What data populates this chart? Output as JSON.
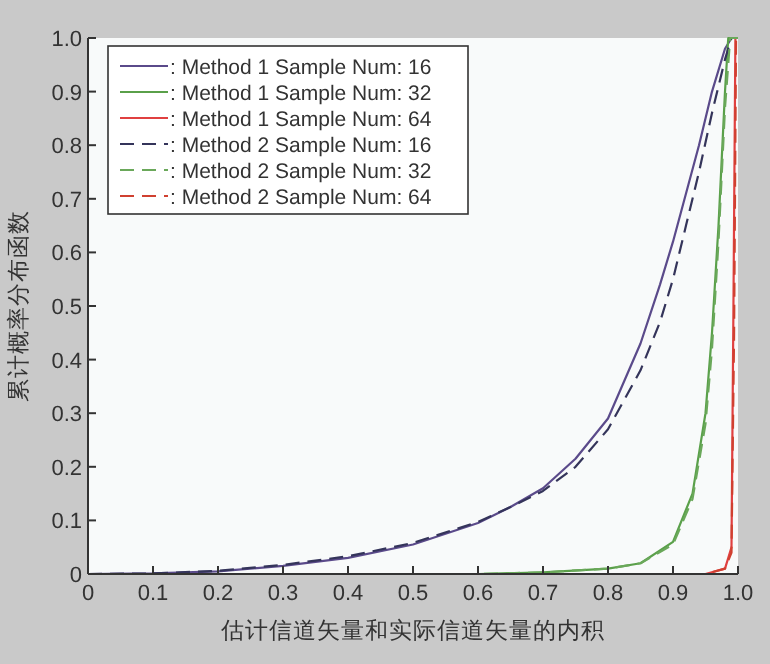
{
  "chart_data": {
    "type": "line",
    "xlabel": "估计信道矢量和实际信道矢量的内积",
    "ylabel": "累计概率分布函数",
    "xlim": [
      0,
      1
    ],
    "ylim": [
      0,
      1
    ],
    "xticks": [
      0,
      0.1,
      0.2,
      0.3,
      0.4,
      0.5,
      0.6,
      0.7,
      0.8,
      0.9,
      {
        "value": 1,
        "label": "1.0"
      }
    ],
    "yticks": [
      0,
      0.1,
      0.2,
      0.3,
      0.4,
      0.5,
      0.6,
      0.7,
      0.8,
      0.9,
      {
        "value": 1,
        "label": "1.0"
      }
    ],
    "grid": false,
    "legend": "top left",
    "marker": "none",
    "series": [
      {
        "name": ": Method 1 Sample Num: 16",
        "color": "#5a4a8a",
        "line_style": "solid",
        "x": [
          0,
          0.1,
          0.2,
          0.3,
          0.4,
          0.5,
          0.6,
          0.65,
          0.7,
          0.75,
          0.8,
          0.85,
          0.88,
          0.9,
          0.92,
          0.94,
          0.96,
          0.98,
          0.99,
          1
        ],
        "values": [
          0,
          0.001,
          0.005,
          0.015,
          0.03,
          0.055,
          0.095,
          0.125,
          0.16,
          0.215,
          0.29,
          0.43,
          0.54,
          0.62,
          0.71,
          0.8,
          0.9,
          0.98,
          1,
          1
        ]
      },
      {
        "name": ": Method 1 Sample Num: 32",
        "color": "#5aa04a",
        "line_style": "solid",
        "x": [
          0,
          0.6,
          0.7,
          0.8,
          0.85,
          0.9,
          0.93,
          0.95,
          0.96,
          0.97,
          0.98,
          0.985,
          1
        ],
        "values": [
          0,
          0,
          0.003,
          0.01,
          0.02,
          0.06,
          0.15,
          0.3,
          0.45,
          0.65,
          0.9,
          1,
          1
        ]
      },
      {
        "name": ": Method 1 Sample Num: 64",
        "color": "#e04040",
        "line_style": "solid",
        "x": [
          0.86,
          0.95,
          0.98,
          0.99,
          0.993,
          0.996,
          1
        ],
        "values": [
          0,
          0,
          0.01,
          0.05,
          0.5,
          1,
          1
        ]
      },
      {
        "name": ": Method 2 Sample Num: 16",
        "color": "#34345a",
        "line_style": "dashed",
        "x": [
          0,
          0.1,
          0.2,
          0.3,
          0.4,
          0.5,
          0.6,
          0.65,
          0.7,
          0.75,
          0.8,
          0.85,
          0.88,
          0.9,
          0.92,
          0.94,
          0.96,
          0.98,
          0.99,
          1
        ],
        "values": [
          0,
          0.001,
          0.006,
          0.017,
          0.033,
          0.058,
          0.097,
          0.125,
          0.155,
          0.2,
          0.27,
          0.38,
          0.47,
          0.55,
          0.65,
          0.75,
          0.86,
          0.96,
          1,
          1
        ]
      },
      {
        "name": ": Method 2 Sample Num: 32",
        "color": "#6aa85a",
        "line_style": "dashed",
        "x": [
          0,
          0.6,
          0.7,
          0.8,
          0.85,
          0.9,
          0.93,
          0.95,
          0.96,
          0.97,
          0.98,
          0.988,
          1
        ],
        "values": [
          0,
          0,
          0.003,
          0.01,
          0.02,
          0.055,
          0.14,
          0.28,
          0.42,
          0.62,
          0.87,
          1,
          1
        ]
      },
      {
        "name": ": Method 2 Sample Num: 64",
        "color": "#d04030",
        "line_style": "dashed",
        "x": [
          0.86,
          0.95,
          0.98,
          0.99,
          0.994,
          0.997,
          1
        ],
        "values": [
          0,
          0,
          0.01,
          0.04,
          0.45,
          1,
          1
        ]
      }
    ]
  }
}
